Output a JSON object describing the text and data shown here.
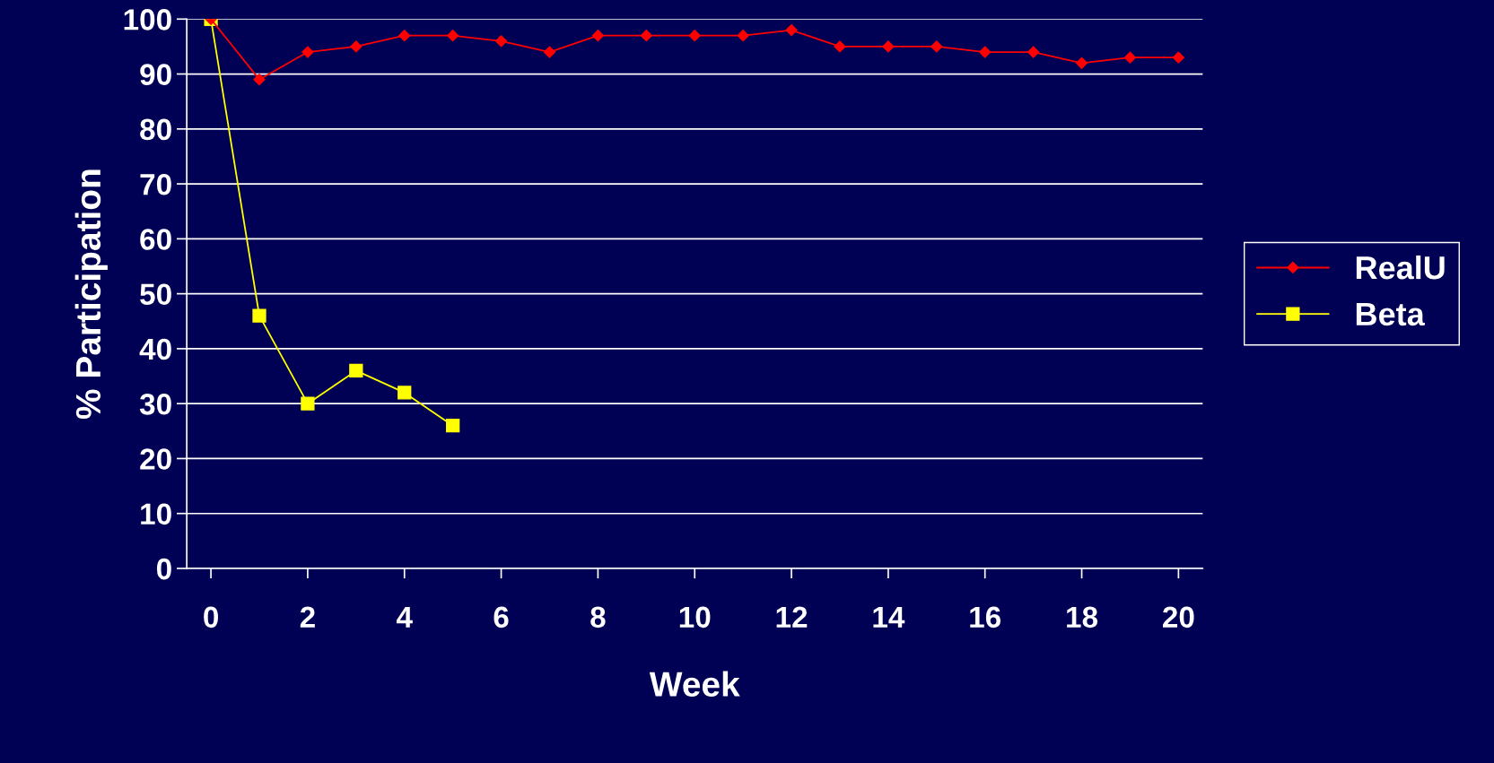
{
  "chart_data": {
    "type": "line",
    "xlabel": "Week",
    "ylabel": "% Participation",
    "x": [
      0,
      1,
      2,
      3,
      4,
      5,
      6,
      7,
      8,
      9,
      10,
      11,
      12,
      13,
      14,
      15,
      16,
      17,
      18,
      19,
      20
    ],
    "series": [
      {
        "name": "RealU",
        "color": "#ff0000",
        "marker": "diamond",
        "values": [
          100,
          89,
          94,
          95,
          97,
          97,
          96,
          94,
          97,
          97,
          97,
          97,
          98,
          95,
          95,
          95,
          94,
          94,
          92,
          93,
          93
        ]
      },
      {
        "name": "Beta",
        "color": "#ffff00",
        "marker": "square",
        "values": [
          100,
          46,
          30,
          36,
          32,
          26,
          null,
          null,
          null,
          null,
          null,
          null,
          null,
          null,
          null,
          null,
          null,
          null,
          null,
          null,
          null
        ]
      }
    ],
    "xlim": [
      -0.5,
      20.5
    ],
    "xticks": [
      0,
      2,
      4,
      6,
      8,
      10,
      12,
      14,
      16,
      18,
      20
    ],
    "ylim": [
      0,
      100
    ],
    "yticks": [
      0,
      10,
      20,
      30,
      40,
      50,
      60,
      70,
      80,
      90,
      100
    ],
    "grid": "y",
    "legend": "right",
    "line_style": "solid"
  }
}
